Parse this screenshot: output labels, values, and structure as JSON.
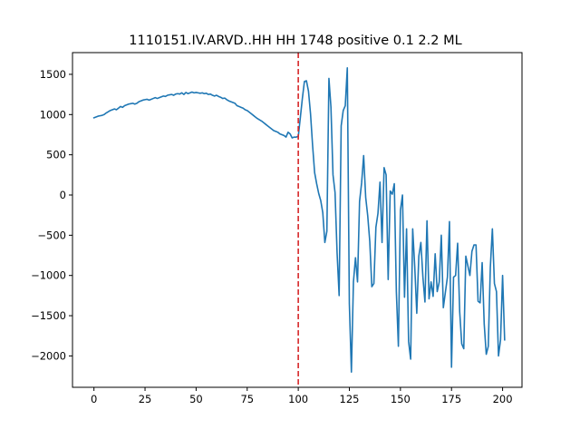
{
  "chart_data": {
    "type": "line",
    "title": "1110151.IV.ARVD..HH HH 1748 positive 0.1 2.2 ML",
    "xlabel": "",
    "ylabel": "",
    "xlim": [
      -10.5,
      209.5
    ],
    "ylim": [
      -2390,
      1770
    ],
    "xticks": [
      0,
      25,
      50,
      75,
      100,
      125,
      150,
      175,
      200
    ],
    "yticks": [
      -2000,
      -1500,
      -1000,
      -500,
      0,
      500,
      1000,
      1500
    ],
    "grid": false,
    "line_color": "#1f77b4",
    "vline": {
      "x": 100,
      "color": "#d62728",
      "style": "dashed"
    },
    "series": [
      {
        "values": [
          960,
          970,
          980,
          985,
          990,
          1000,
          1020,
          1035,
          1050,
          1060,
          1070,
          1060,
          1080,
          1100,
          1090,
          1110,
          1120,
          1130,
          1135,
          1140,
          1130,
          1140,
          1160,
          1170,
          1180,
          1185,
          1190,
          1180,
          1190,
          1200,
          1210,
          1200,
          1210,
          1220,
          1230,
          1225,
          1240,
          1245,
          1250,
          1240,
          1255,
          1260,
          1255,
          1270,
          1250,
          1275,
          1260,
          1270,
          1280,
          1270,
          1275,
          1270,
          1265,
          1270,
          1260,
          1265,
          1250,
          1255,
          1240,
          1230,
          1240,
          1225,
          1215,
          1200,
          1205,
          1185,
          1170,
          1160,
          1150,
          1140,
          1110,
          1100,
          1090,
          1080,
          1060,
          1050,
          1030,
          1010,
          990,
          970,
          950,
          935,
          920,
          900,
          880,
          860,
          840,
          820,
          800,
          790,
          780,
          760,
          750,
          740,
          720,
          780,
          760,
          710,
          720,
          720,
          730,
          960,
          1200,
          1410,
          1420,
          1290,
          1010,
          620,
          280,
          140,
          20,
          -70,
          -220,
          -590,
          -450,
          1450,
          1090,
          250,
          30,
          -720,
          -1250,
          860,
          1050,
          1110,
          1580,
          -1350,
          -2200,
          -1080,
          -780,
          -1080,
          -80,
          150,
          490,
          -30,
          -260,
          -580,
          -1140,
          -1100,
          -400,
          -230,
          160,
          -590,
          340,
          250,
          -1050,
          50,
          10,
          140,
          -1200,
          -1880,
          -190,
          0,
          -1270,
          -420,
          -1820,
          -2040,
          -420,
          -890,
          -1470,
          -760,
          -590,
          -1020,
          -1330,
          -320,
          -1290,
          -1080,
          -1260,
          -730,
          -1200,
          -1080,
          -500,
          -1400,
          -1210,
          -1020,
          -330,
          -2140,
          -1020,
          -1000,
          -600,
          -1450,
          -1850,
          -1910,
          -760,
          -880,
          -1000,
          -700,
          -620,
          -620,
          -1320,
          -1340,
          -840,
          -1600,
          -1980,
          -1880,
          -900,
          -420,
          -1100,
          -1200,
          -2000,
          -1800,
          -1000,
          -1800
        ]
      }
    ]
  }
}
